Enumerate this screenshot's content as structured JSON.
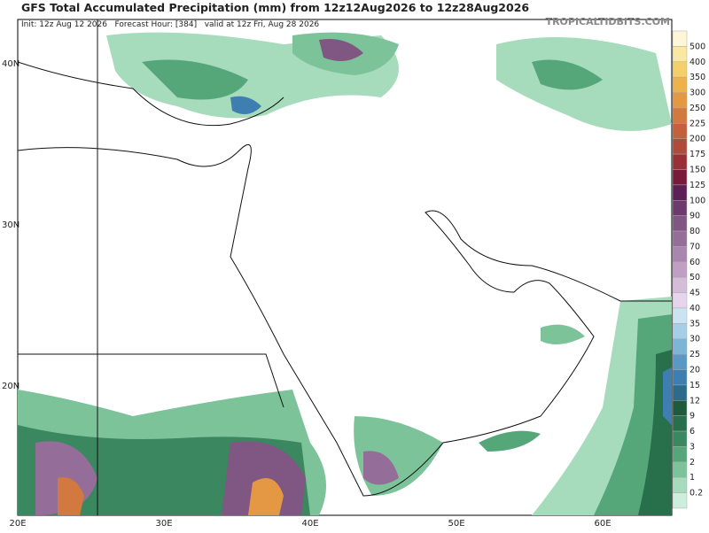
{
  "header": {
    "title": "GFS Total Accumulated Precipitation (mm) from 12z12Aug2026 to 12z28Aug2026",
    "subtitle": "Init: 12z Aug 12 2026   Forecast Hour: [384]   valid at 12z Fri, Aug 28 2026",
    "source": "TROPICALTIDBITS.COM"
  },
  "map": {
    "lat_labels": [
      "40N",
      "30N",
      "20N"
    ],
    "lon_labels": [
      "20E",
      "30E",
      "40E",
      "50E",
      "60E"
    ]
  },
  "colorbar": {
    "labels": [
      "500",
      "400",
      "350",
      "300",
      "250",
      "225",
      "200",
      "175",
      "150",
      "125",
      "100",
      "90",
      "80",
      "70",
      "60",
      "50",
      "45",
      "40",
      "35",
      "30",
      "25",
      "20",
      "15",
      "12",
      "9",
      "6",
      "3",
      "2",
      "1",
      "0.2"
    ],
    "colors": [
      "#fbe8a0",
      "#f5d06a",
      "#eeb24a",
      "#e49844",
      "#d2793f",
      "#c2613b",
      "#b04a3a",
      "#9a2f36",
      "#7a1a3a",
      "#5e1f55",
      "#6d3a6e",
      "#805683",
      "#946e98",
      "#a986ad",
      "#bfa0c2",
      "#d5bcd8",
      "#e6d4ec",
      "#cce4f2",
      "#a6cfe6",
      "#7db5d6",
      "#5b98c4",
      "#3f7eb0",
      "#2d6a8c",
      "#1e5a3e",
      "#28704c",
      "#3a8760",
      "#55a77a",
      "#7cc39a",
      "#a6dcbc",
      "#cdeedd"
    ]
  }
}
